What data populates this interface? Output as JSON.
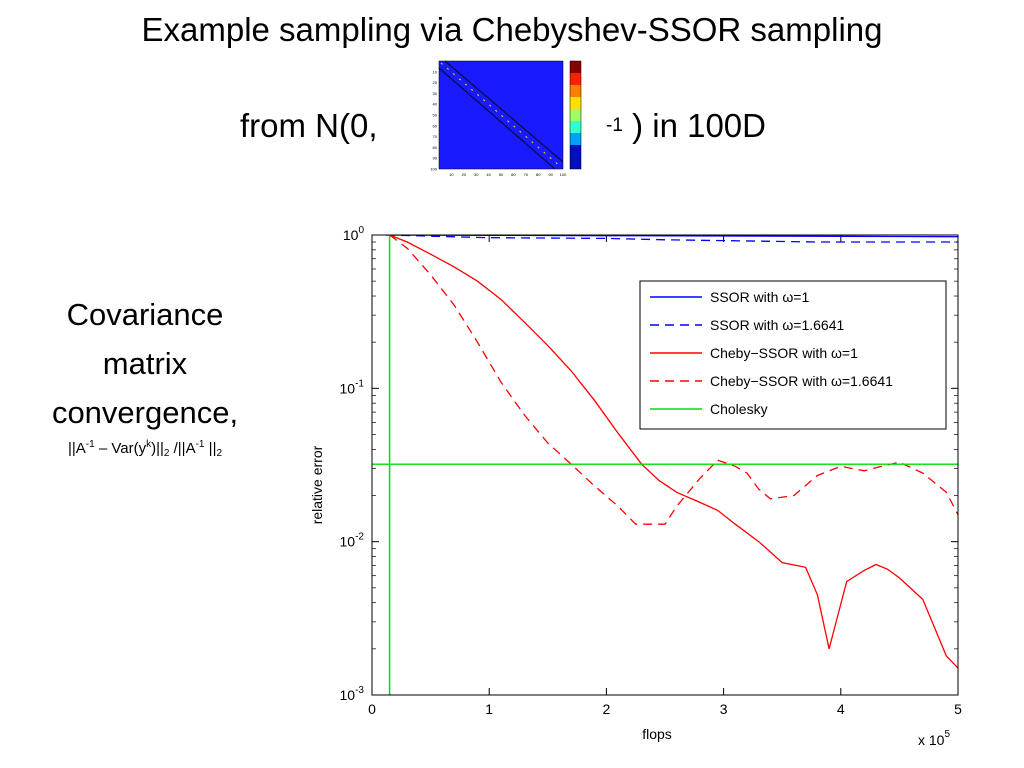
{
  "slide": {
    "title": "Example sampling via Chebyshev-SSOR sampling",
    "subtitle_left": "from N(0,",
    "subtitle_exp": "-1",
    "subtitle_right": " ) in 100D",
    "side_lines": [
      "Covariance",
      "matrix",
      "convergence,"
    ],
    "formula": {
      "a": "||A",
      "a_sup": "-1",
      "b": " – Var(y",
      "b_sup": "k",
      "c": ")||",
      "c_sub": "2",
      "d": " /||A",
      "d_sup": "-1",
      "e": " ||",
      "e_sub": "2"
    }
  },
  "matrix_inset": {
    "ticks": [
      "10",
      "20",
      "30",
      "40",
      "50",
      "60",
      "70",
      "80",
      "90",
      "100"
    ],
    "colors": {
      "background": "#1a1aff",
      "band": "#0a0a50",
      "diagonal": "#f0e020"
    }
  },
  "chart_data": {
    "type": "line",
    "xlabel": "flops",
    "ylabel": "relative error",
    "x_multiplier": "x 10",
    "x_multiplier_exp": "5",
    "xlim": [
      0,
      5
    ],
    "ylim": [
      0.001,
      1
    ],
    "yscale": "log",
    "x_ticks": [
      "0",
      "1",
      "2",
      "3",
      "4",
      "5"
    ],
    "y_ticks": [
      {
        "base": "10",
        "exp": "0",
        "value": 1
      },
      {
        "base": "10",
        "exp": "-1",
        "value": 0.1
      },
      {
        "base": "10",
        "exp": "-2",
        "value": 0.01
      },
      {
        "base": "10",
        "exp": "-3",
        "value": 0.001
      }
    ],
    "legend_position": "top-right",
    "series": [
      {
        "name": "SSOR with ω=1",
        "color": "#0000ff",
        "dash": "solid",
        "x": [
          0.12,
          1,
          2,
          3,
          4,
          5
        ],
        "y": [
          1.0,
          0.995,
          0.99,
          0.985,
          0.98,
          0.975
        ]
      },
      {
        "name": "SSOR with ω=1.6641",
        "color": "#0000ff",
        "dash": "dashed",
        "x": [
          0.12,
          1,
          2,
          2.5,
          3,
          3.8,
          5
        ],
        "y": [
          1.0,
          0.96,
          0.95,
          0.93,
          0.92,
          0.9,
          0.9
        ]
      },
      {
        "name": "Cheby−SSOR with ω=1",
        "color": "#ff0000",
        "dash": "solid",
        "x": [
          0.15,
          0.3,
          0.5,
          0.7,
          0.9,
          1.1,
          1.3,
          1.5,
          1.7,
          1.9,
          2.1,
          2.3,
          2.45,
          2.6,
          2.8,
          2.95,
          3.1,
          3.3,
          3.5,
          3.7,
          3.8,
          3.9,
          4.05,
          4.2,
          4.3,
          4.4,
          4.5,
          4.7,
          4.9,
          5.0
        ],
        "y": [
          1.0,
          0.9,
          0.75,
          0.62,
          0.5,
          0.38,
          0.27,
          0.19,
          0.13,
          0.083,
          0.051,
          0.032,
          0.025,
          0.021,
          0.018,
          0.016,
          0.013,
          0.01,
          0.0073,
          0.0068,
          0.0045,
          0.002,
          0.0055,
          0.0065,
          0.0071,
          0.0066,
          0.0058,
          0.0042,
          0.0018,
          0.0015
        ]
      },
      {
        "name": "Cheby−SSOR with ω=1.6641",
        "color": "#ff0000",
        "dash": "dashed",
        "x": [
          0.15,
          0.3,
          0.5,
          0.7,
          0.9,
          1.1,
          1.3,
          1.5,
          1.7,
          1.9,
          2.1,
          2.25,
          2.5,
          2.6,
          2.8,
          2.95,
          3.1,
          3.2,
          3.3,
          3.4,
          3.6,
          3.8,
          4.0,
          4.2,
          4.35,
          4.5,
          4.7,
          4.9,
          5.0
        ],
        "y": [
          1.0,
          0.82,
          0.55,
          0.35,
          0.2,
          0.11,
          0.067,
          0.044,
          0.032,
          0.023,
          0.017,
          0.013,
          0.013,
          0.017,
          0.026,
          0.034,
          0.031,
          0.028,
          0.022,
          0.019,
          0.02,
          0.027,
          0.031,
          0.029,
          0.031,
          0.033,
          0.028,
          0.021,
          0.015
        ]
      },
      {
        "name": "Cholesky",
        "color": "#00dd00",
        "dash": "solid",
        "x": [
          0,
          5
        ],
        "y": [
          0.032,
          0.032
        ],
        "vertical_x": 0.15
      }
    ]
  }
}
